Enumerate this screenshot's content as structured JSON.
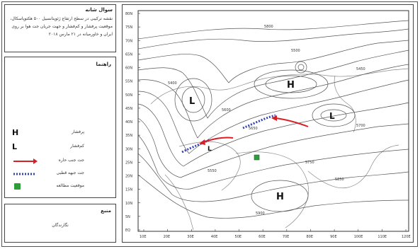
{
  "sidebar": {
    "title": "سوال شانه",
    "description": "نقشه ترکیبی در سطح ارتفاع ژئوپتانسیل ۵۰۰ هکتوپاسکال، موقعیت پرفشار و کم‌فشار و جهت جریان جت هوا بر روی ایران و خاورمیانه در ۲۱ مارس ۲۰۱۸",
    "legend_title": "راهنما",
    "legend": [
      {
        "symbol": "H",
        "label": "پرفشار"
      },
      {
        "symbol": "L",
        "label": "کم‌فشار"
      },
      {
        "symbol": "red-arrow-line",
        "label": "جت جنب حاره"
      },
      {
        "symbol": "blue-dotted-line",
        "label": "جت جبهه قطبی"
      },
      {
        "symbol": "green-dot",
        "label": "موقعیت مطالعه"
      }
    ],
    "source_title": "منبع",
    "source_value": "نگارندگان"
  },
  "map": {
    "highs": [
      "H",
      "H"
    ],
    "lows": [
      "L",
      "L",
      "L"
    ],
    "y_ticks": [
      "80N",
      "75N",
      "70N",
      "65N",
      "60N",
      "55N",
      "50N",
      "45N",
      "40N",
      "35N",
      "30N",
      "25N",
      "20N",
      "15N",
      "10N",
      "5N",
      "EQ"
    ],
    "x_ticks": [
      "10E",
      "20E",
      "30E",
      "40E",
      "50E",
      "60E",
      "70E",
      "80E",
      "90E",
      "100E",
      "110E",
      "120E"
    ],
    "contour_labels": [
      "5600",
      "5650",
      "5700",
      "5750",
      "5800",
      "5500",
      "5450",
      "5400",
      "5550",
      "5850",
      "5900"
    ]
  },
  "colors": {
    "subtropical_jet": "#d81f26",
    "polar_jet": "#3443b8",
    "study_point": "#2e9e3a",
    "contour": "#555555"
  }
}
